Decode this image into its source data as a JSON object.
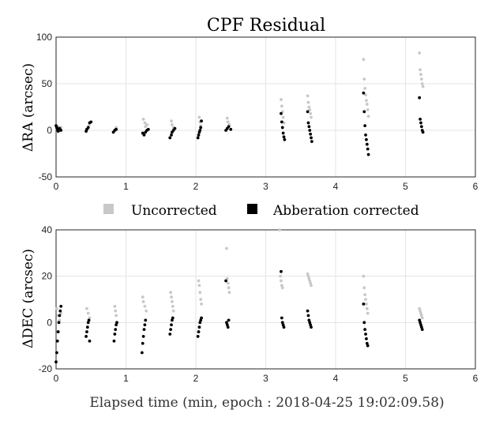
{
  "chart_data": [
    {
      "type": "scatter",
      "title": "CPF Residual",
      "ylabel": "ΔRA (arcsec)",
      "xlabel": "",
      "xlim": [
        0,
        6
      ],
      "ylim": [
        -50,
        100
      ],
      "xticks": [
        "0",
        "1",
        "2",
        "3",
        "4",
        "5",
        "6"
      ],
      "yticks": [
        "-50",
        "0",
        "50",
        "100"
      ],
      "grid": true,
      "series": [
        {
          "name": "Uncorrected",
          "color": "#c8c8c8",
          "points": [
            [
              0.02,
              2
            ],
            [
              0.03,
              4
            ],
            [
              0.05,
              0
            ],
            [
              0.07,
              3
            ],
            [
              0.45,
              2
            ],
            [
              0.47,
              5
            ],
            [
              0.85,
              1
            ],
            [
              0.86,
              3
            ],
            [
              1.25,
              12
            ],
            [
              1.27,
              8
            ],
            [
              1.28,
              4
            ],
            [
              1.3,
              6
            ],
            [
              1.65,
              10
            ],
            [
              1.66,
              6
            ],
            [
              1.68,
              3
            ],
            [
              2.05,
              14
            ],
            [
              2.06,
              9
            ],
            [
              2.07,
              5
            ],
            [
              2.45,
              13
            ],
            [
              2.46,
              9
            ],
            [
              2.48,
              6
            ],
            [
              3.22,
              33
            ],
            [
              3.23,
              26
            ],
            [
              3.24,
              20
            ],
            [
              3.25,
              14
            ],
            [
              3.26,
              8
            ],
            [
              3.6,
              37
            ],
            [
              3.61,
              30
            ],
            [
              3.62,
              25
            ],
            [
              3.63,
              22
            ],
            [
              3.64,
              18
            ],
            [
              3.65,
              14
            ],
            [
              4.4,
              76
            ],
            [
              4.41,
              55
            ],
            [
              4.42,
              45
            ],
            [
              4.43,
              38
            ],
            [
              4.44,
              32
            ],
            [
              4.45,
              28
            ],
            [
              4.46,
              22
            ],
            [
              4.47,
              15
            ],
            [
              5.2,
              83
            ],
            [
              5.21,
              65
            ],
            [
              5.22,
              60
            ],
            [
              5.23,
              55
            ],
            [
              5.24,
              50
            ],
            [
              5.25,
              47
            ]
          ]
        },
        {
          "name": "Abberation corrected",
          "color": "#000000",
          "points": [
            [
              0.0,
              5
            ],
            [
              0.01,
              3
            ],
            [
              0.02,
              1
            ],
            [
              0.03,
              -1
            ],
            [
              0.05,
              2
            ],
            [
              0.07,
              0
            ],
            [
              0.43,
              -1
            ],
            [
              0.44,
              1
            ],
            [
              0.46,
              3
            ],
            [
              0.48,
              8
            ],
            [
              0.5,
              9
            ],
            [
              0.82,
              -2
            ],
            [
              0.84,
              0
            ],
            [
              0.86,
              1
            ],
            [
              1.24,
              -3
            ],
            [
              1.26,
              -5
            ],
            [
              1.28,
              -2
            ],
            [
              1.3,
              0
            ],
            [
              1.32,
              1
            ],
            [
              1.63,
              -8
            ],
            [
              1.65,
              -5
            ],
            [
              1.66,
              -2
            ],
            [
              1.68,
              0
            ],
            [
              1.7,
              2
            ],
            [
              2.03,
              -8
            ],
            [
              2.04,
              -5
            ],
            [
              2.05,
              -2
            ],
            [
              2.06,
              0
            ],
            [
              2.07,
              3
            ],
            [
              2.08,
              10
            ],
            [
              2.43,
              0
            ],
            [
              2.45,
              2
            ],
            [
              2.47,
              4
            ],
            [
              2.5,
              1
            ],
            [
              3.22,
              18
            ],
            [
              3.23,
              9
            ],
            [
              3.24,
              3
            ],
            [
              3.25,
              -3
            ],
            [
              3.26,
              -7
            ],
            [
              3.27,
              -10
            ],
            [
              3.6,
              20
            ],
            [
              3.61,
              8
            ],
            [
              3.62,
              4
            ],
            [
              3.63,
              0
            ],
            [
              3.64,
              -4
            ],
            [
              3.65,
              -8
            ],
            [
              3.66,
              -12
            ],
            [
              4.4,
              40
            ],
            [
              4.41,
              20
            ],
            [
              4.42,
              5
            ],
            [
              4.43,
              -5
            ],
            [
              4.44,
              -10
            ],
            [
              4.45,
              -15
            ],
            [
              4.46,
              -20
            ],
            [
              4.47,
              -26
            ],
            [
              5.2,
              35
            ],
            [
              5.21,
              12
            ],
            [
              5.22,
              8
            ],
            [
              5.23,
              4
            ],
            [
              5.24,
              0
            ],
            [
              5.25,
              -2
            ]
          ]
        }
      ]
    },
    {
      "type": "scatter",
      "title": "",
      "ylabel": "ΔDEC (arcsec)",
      "xlabel": "Elapsed time (min, epoch : 2018-04-25 19:02:09.58)",
      "xlim": [
        0,
        6
      ],
      "ylim": [
        -20,
        40
      ],
      "xticks": [
        "0",
        "1",
        "2",
        "3",
        "4",
        "5",
        "6"
      ],
      "yticks": [
        "-20",
        "0",
        "20",
        "40"
      ],
      "grid": true,
      "series": [
        {
          "name": "Uncorrected",
          "color": "#c8c8c8",
          "points": [
            [
              0.01,
              6
            ],
            [
              0.03,
              3
            ],
            [
              0.05,
              1
            ],
            [
              0.07,
              4
            ],
            [
              0.44,
              6
            ],
            [
              0.46,
              4
            ],
            [
              0.48,
              2
            ],
            [
              0.84,
              7
            ],
            [
              0.85,
              5
            ],
            [
              0.86,
              3
            ],
            [
              1.24,
              11
            ],
            [
              1.25,
              9
            ],
            [
              1.27,
              7
            ],
            [
              1.29,
              5
            ],
            [
              1.64,
              13
            ],
            [
              1.65,
              11
            ],
            [
              1.66,
              9
            ],
            [
              1.67,
              7
            ],
            [
              1.68,
              5
            ],
            [
              2.04,
              18
            ],
            [
              2.05,
              16
            ],
            [
              2.06,
              13
            ],
            [
              2.07,
              10
            ],
            [
              2.08,
              8
            ],
            [
              2.44,
              32
            ],
            [
              2.45,
              19
            ],
            [
              2.46,
              17
            ],
            [
              2.47,
              15
            ],
            [
              2.48,
              13
            ],
            [
              3.2,
              40
            ],
            [
              3.21,
              20
            ],
            [
              3.22,
              18
            ],
            [
              3.23,
              16
            ],
            [
              3.24,
              15
            ],
            [
              3.6,
              21
            ],
            [
              3.61,
              20
            ],
            [
              3.62,
              19
            ],
            [
              3.63,
              18
            ],
            [
              3.64,
              17
            ],
            [
              3.65,
              16
            ],
            [
              4.4,
              20
            ],
            [
              4.41,
              15
            ],
            [
              4.42,
              12
            ],
            [
              4.43,
              10
            ],
            [
              4.44,
              8
            ],
            [
              4.45,
              6
            ],
            [
              4.46,
              4
            ],
            [
              5.2,
              6
            ],
            [
              5.21,
              5
            ],
            [
              5.22,
              4
            ],
            [
              5.23,
              3
            ],
            [
              5.24,
              2
            ]
          ]
        },
        {
          "name": "Abberation corrected",
          "color": "#000000",
          "points": [
            [
              0.0,
              -17
            ],
            [
              0.01,
              -13
            ],
            [
              0.02,
              -8
            ],
            [
              0.03,
              -4
            ],
            [
              0.04,
              0
            ],
            [
              0.05,
              3
            ],
            [
              0.06,
              5
            ],
            [
              0.07,
              7
            ],
            [
              0.43,
              -6
            ],
            [
              0.44,
              -4
            ],
            [
              0.45,
              -2
            ],
            [
              0.46,
              0
            ],
            [
              0.47,
              1
            ],
            [
              0.48,
              -8
            ],
            [
              0.83,
              -8
            ],
            [
              0.84,
              -5
            ],
            [
              0.85,
              -3
            ],
            [
              0.86,
              -1
            ],
            [
              0.87,
              0
            ],
            [
              1.23,
              -13
            ],
            [
              1.24,
              -9
            ],
            [
              1.25,
              -6
            ],
            [
              1.26,
              -3
            ],
            [
              1.27,
              -1
            ],
            [
              1.28,
              1
            ],
            [
              1.63,
              -5
            ],
            [
              1.64,
              -3
            ],
            [
              1.65,
              -1
            ],
            [
              1.66,
              1
            ],
            [
              1.67,
              2
            ],
            [
              2.03,
              -6
            ],
            [
              2.04,
              -4
            ],
            [
              2.05,
              -2
            ],
            [
              2.06,
              0
            ],
            [
              2.07,
              1
            ],
            [
              2.08,
              2
            ],
            [
              2.43,
              18
            ],
            [
              2.44,
              0
            ],
            [
              2.45,
              -1
            ],
            [
              2.46,
              -2
            ],
            [
              2.47,
              1
            ],
            [
              3.22,
              22
            ],
            [
              3.23,
              2
            ],
            [
              3.24,
              0
            ],
            [
              3.25,
              -1
            ],
            [
              3.26,
              -2
            ],
            [
              3.6,
              5
            ],
            [
              3.61,
              3
            ],
            [
              3.62,
              1
            ],
            [
              3.63,
              0
            ],
            [
              3.64,
              -1
            ],
            [
              3.65,
              -2
            ],
            [
              4.4,
              8
            ],
            [
              4.41,
              0
            ],
            [
              4.42,
              -3
            ],
            [
              4.43,
              -5
            ],
            [
              4.44,
              -7
            ],
            [
              4.45,
              -9
            ],
            [
              4.46,
              -10
            ],
            [
              5.2,
              1
            ],
            [
              5.21,
              0
            ],
            [
              5.22,
              -1
            ],
            [
              5.23,
              -2
            ],
            [
              5.24,
              -3
            ]
          ]
        }
      ]
    }
  ],
  "legend": {
    "items": [
      {
        "label": "Uncorrected",
        "color": "#c8c8c8"
      },
      {
        "label": "Abberation corrected",
        "color": "#000000"
      }
    ]
  }
}
